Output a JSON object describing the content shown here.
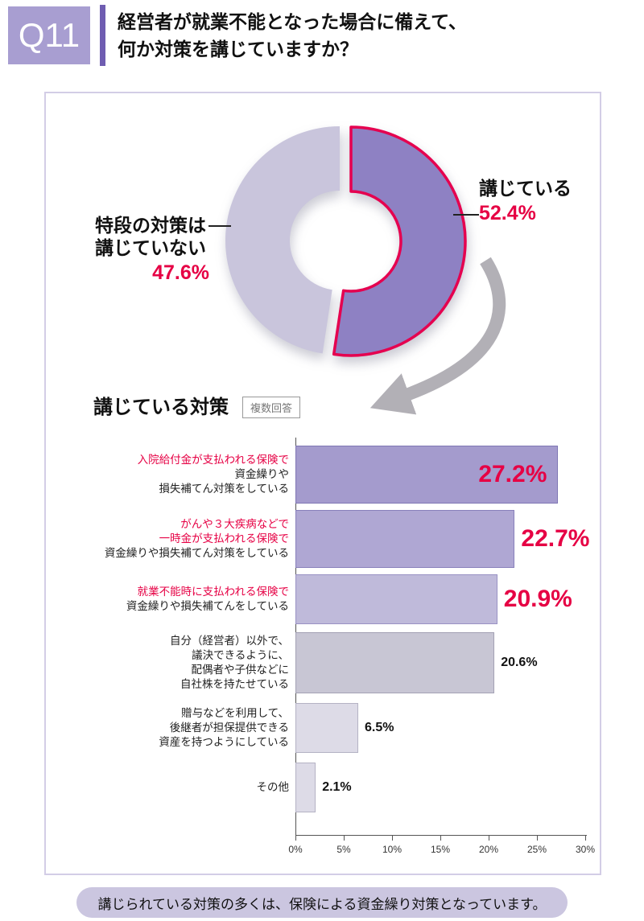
{
  "header": {
    "q_label": "Q11",
    "title_lines": [
      "経営者が就業不能となった場合に備えて、",
      "何か対策を講じていますか？"
    ]
  },
  "chart_data": [
    {
      "type": "pie",
      "style": "donut",
      "units": "%",
      "segments": [
        {
          "label": "講じている",
          "value": 52.4,
          "value_label": "52.4%",
          "color": "#8e81c3",
          "outline": "#e5004f",
          "exploded": true
        },
        {
          "label": "特段の対策は講じていない",
          "label_lines": [
            "特段の対策は",
            "講じていない"
          ],
          "value": 47.6,
          "value_label": "47.6%",
          "color": "#c9c5dc"
        }
      ]
    },
    {
      "type": "bar",
      "orientation": "horizontal",
      "title": "講じている対策",
      "note_badge": "複数回答",
      "xlim": [
        0,
        30
      ],
      "x_ticks": [
        "0%",
        "5%",
        "10%",
        "15%",
        "20%",
        "25%",
        "30%"
      ],
      "bars": [
        {
          "label_lines": [
            "入院給付金が支払われる保険で",
            "資金繰りや",
            "損失補てん対策をしている"
          ],
          "red_line_count": 1,
          "value": 27.2,
          "value_label": "27.2%",
          "value_style": "red-large",
          "value_position": "inside",
          "fill": "#a49bcd",
          "border": "#7f76b4"
        },
        {
          "label_lines": [
            "がんや３大疾病などで",
            "一時金が支払われる保険で",
            "資金繰りや損失補てん対策をしている"
          ],
          "red_line_count": 2,
          "value": 22.7,
          "value_label": "22.7%",
          "value_style": "red-large",
          "value_position": "outside",
          "fill": "#afa7d3",
          "border": "#8880bb"
        },
        {
          "label_lines": [
            "就業不能時に支払われる保険で",
            "資金繰りや損失補てんをしている"
          ],
          "red_line_count": 1,
          "value": 20.9,
          "value_label": "20.9%",
          "value_style": "red-large",
          "value_position": "outside",
          "fill": "#bfbada",
          "border": "#9992c4"
        },
        {
          "label_lines": [
            "自分（経営者）以外で、",
            "議決できるように、",
            "配偶者や子供などに",
            "自社株を持たせている"
          ],
          "red_line_count": 0,
          "value": 20.6,
          "value_label": "20.6%",
          "value_style": "plain",
          "value_position": "outside",
          "fill": "#c8c6d4",
          "border": "#a3a1b4"
        },
        {
          "label_lines": [
            "贈与などを利用して、",
            "後継者が担保提供できる",
            "資産を持つようにしている"
          ],
          "red_line_count": 0,
          "value": 6.5,
          "value_label": "6.5%",
          "value_style": "plain",
          "value_position": "outside",
          "fill": "#dddbe7",
          "border": "#b4b2c4"
        },
        {
          "label_lines": [
            "その他"
          ],
          "red_line_count": 0,
          "value": 2.1,
          "value_label": "2.1%",
          "value_style": "plain",
          "value_position": "outside",
          "fill": "#dddbe7",
          "border": "#b4b2c4"
        }
      ]
    }
  ],
  "footer": {
    "note": "講じられている対策の多くは、保険による資金繰り対策となっています。"
  },
  "colors": {
    "brand_purple": "#a89ed1",
    "accent_bar": "#6f5db1",
    "highlight_red": "#e60044",
    "donut_yes": "#8e81c3",
    "donut_no": "#c9c5dc",
    "panel_border": "#d3cde6",
    "footer_bg": "#cbc6e0",
    "arrow_gray": "#b2b0b6"
  }
}
